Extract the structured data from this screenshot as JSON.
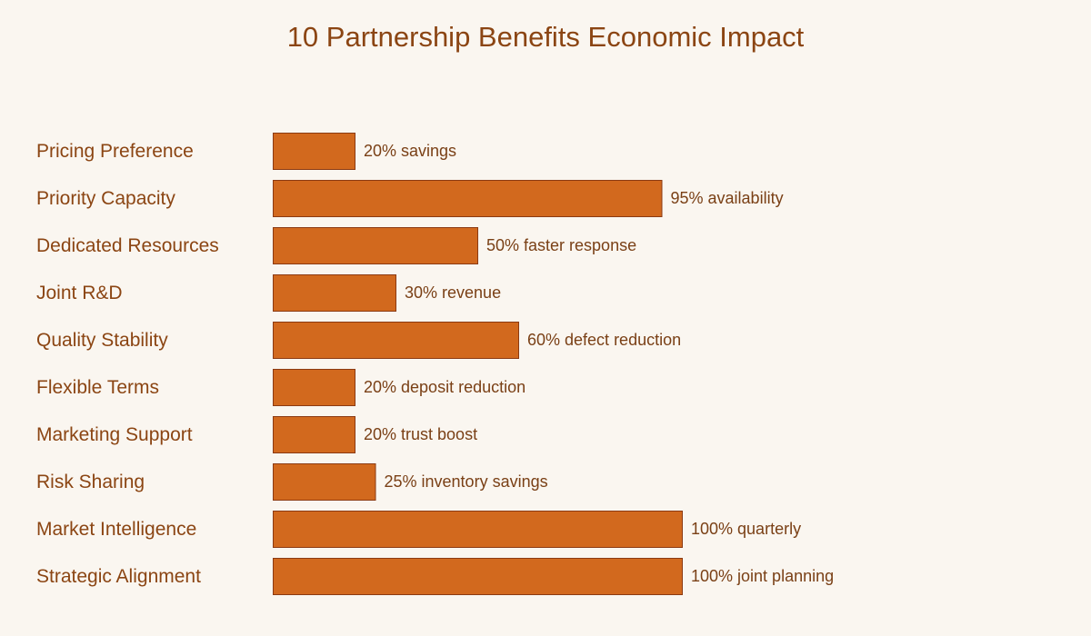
{
  "chart_data": {
    "type": "bar",
    "orientation": "horizontal",
    "title": "10 Partnership Benefits Economic Impact",
    "xlabel": "",
    "ylabel": "",
    "grid": false,
    "xlim": [
      0,
      100
    ],
    "categories": [
      "Pricing Preference",
      "Priority Capacity",
      "Dedicated Resources",
      "Joint R&D",
      "Quality Stability",
      "Flexible Terms",
      "Marketing Support",
      "Risk Sharing",
      "Market Intelligence",
      "Strategic Alignment"
    ],
    "values": [
      20,
      95,
      50,
      30,
      60,
      20,
      20,
      25,
      100,
      100
    ],
    "data_labels": [
      "20% savings",
      "95% availability",
      "50% faster response",
      "30% revenue",
      "60% defect reduction",
      "20% deposit reduction",
      "20% trust boost",
      "25% inventory savings",
      "100% quarterly",
      "100% joint planning"
    ]
  },
  "colors": {
    "background": "#faf6f0",
    "bar_fill": "#d2691e",
    "bar_stroke": "#8b3a12",
    "text": "#8b4513",
    "label_text": "#7a4016"
  }
}
